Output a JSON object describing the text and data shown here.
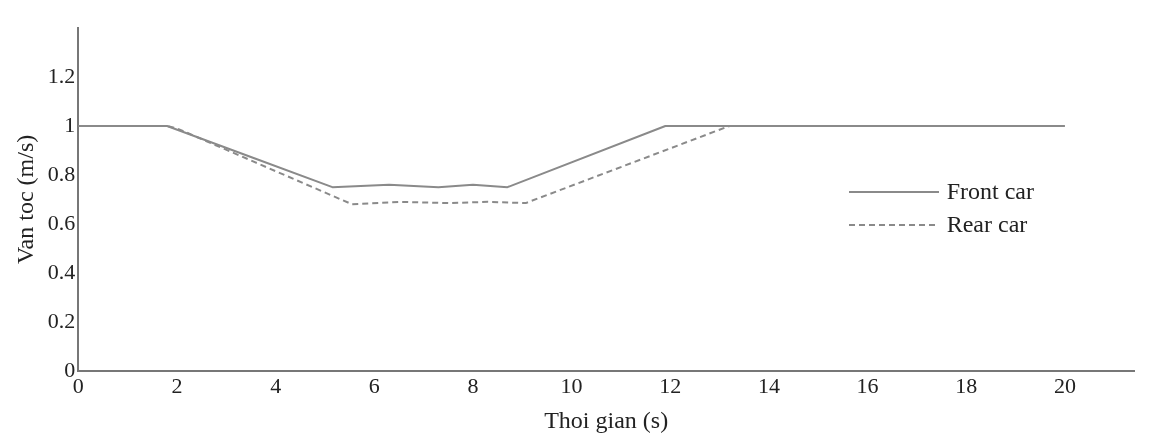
{
  "chart_data": {
    "type": "line",
    "xlabel": "Thoi gian (s)",
    "ylabel": "Van toc (m/s)",
    "xlim": [
      0,
      21.4
    ],
    "xticks": [
      0,
      2,
      4,
      6,
      8,
      10,
      12,
      14,
      16,
      18,
      20
    ],
    "ylim": [
      0,
      1.4
    ],
    "yticks": [
      0,
      0.2,
      0.4,
      0.6,
      0.8,
      1,
      1.2
    ],
    "grid": false,
    "legend": "right",
    "marker": "none",
    "series": [
      {
        "name": "Front car",
        "color": "#8a8a8a",
        "line_style": "solid",
        "x": [
          0,
          1.8,
          5.15,
          6.3,
          7.3,
          8,
          8.7,
          11.9,
          20
        ],
        "values": [
          1,
          1,
          0.75,
          0.76,
          0.75,
          0.76,
          0.75,
          1,
          1
        ]
      },
      {
        "name": "Rear car",
        "color": "#8a8a8a",
        "line_style": "dashed",
        "x": [
          0,
          1.8,
          2,
          5.55,
          6.5,
          7.5,
          8.3,
          9.07,
          13.2,
          20
        ],
        "values": [
          1,
          1,
          0.99,
          0.68,
          0.69,
          0.685,
          0.69,
          0.685,
          1,
          1
        ]
      }
    ]
  }
}
